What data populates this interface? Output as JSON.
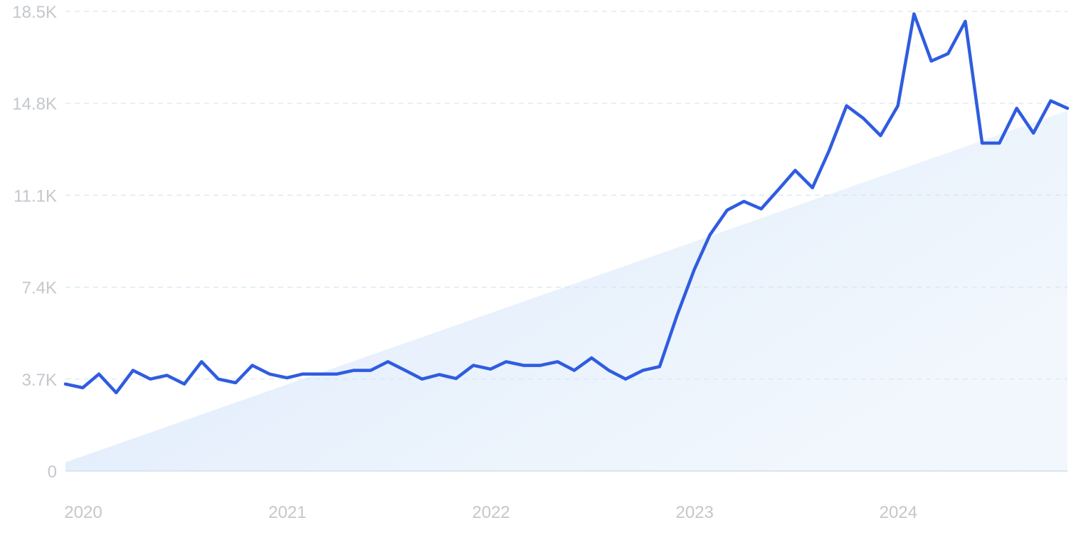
{
  "chart_data": {
    "type": "line",
    "title": "",
    "xlabel": "",
    "ylabel": "",
    "ylim": [
      0,
      18500
    ],
    "y_ticks": [
      {
        "value": 0,
        "label": "0"
      },
      {
        "value": 3700,
        "label": "3.7K"
      },
      {
        "value": 7400,
        "label": "7.4K"
      },
      {
        "value": 11100,
        "label": "11.1K"
      },
      {
        "value": 14800,
        "label": "14.8K"
      },
      {
        "value": 18500,
        "label": "18.5K"
      }
    ],
    "x_ticks": [
      "2020",
      "2021",
      "2022",
      "2023",
      "2024"
    ],
    "grid": "horizontal dashed",
    "line_color": "#2f5ce0",
    "trend_fill_color": "#dbe9fa",
    "series": [
      {
        "x": [
          "2020-01",
          "2020-02",
          "2020-03",
          "2020-04",
          "2020-05",
          "2020-06",
          "2020-07",
          "2020-08",
          "2020-09",
          "2020-10",
          "2020-11",
          "2020-12",
          "2021-01",
          "2021-02",
          "2021-03",
          "2021-04",
          "2021-05",
          "2021-06",
          "2021-07",
          "2021-08",
          "2021-09",
          "2021-10",
          "2021-11",
          "2021-12",
          "2022-01",
          "2022-02",
          "2022-03",
          "2022-04",
          "2022-05",
          "2022-06",
          "2022-07",
          "2022-08",
          "2022-09",
          "2022-10",
          "2022-11",
          "2022-12",
          "2023-01",
          "2023-02",
          "2023-03",
          "2023-04",
          "2023-05",
          "2023-06",
          "2023-07",
          "2023-08",
          "2023-09",
          "2023-10",
          "2023-11",
          "2023-12",
          "2024-01",
          "2024-02",
          "2024-03",
          "2024-04",
          "2024-05",
          "2024-06",
          "2024-07",
          "2024-08",
          "2024-09",
          "2024-10",
          "2024-11",
          "2024-12"
        ],
        "values": [
          3500,
          3350,
          3900,
          3150,
          4050,
          3700,
          3850,
          3500,
          4400,
          3700,
          3550,
          4250,
          3900,
          3750,
          3900,
          3900,
          3900,
          4050,
          4050,
          4400,
          4050,
          3700,
          3880,
          3720,
          4250,
          4100,
          4400,
          4250,
          4250,
          4400,
          4050,
          4550,
          4050,
          3700,
          4050,
          4200,
          6250,
          8100,
          9500,
          10500,
          10850,
          10550,
          11300,
          12100,
          11400,
          12900,
          14700,
          14200,
          13500,
          14700,
          18400,
          16500,
          16800,
          18100,
          13200,
          13200,
          14600,
          13600,
          14900,
          14600
        ]
      }
    ],
    "trend": {
      "start": 350,
      "end": 14500
    }
  }
}
